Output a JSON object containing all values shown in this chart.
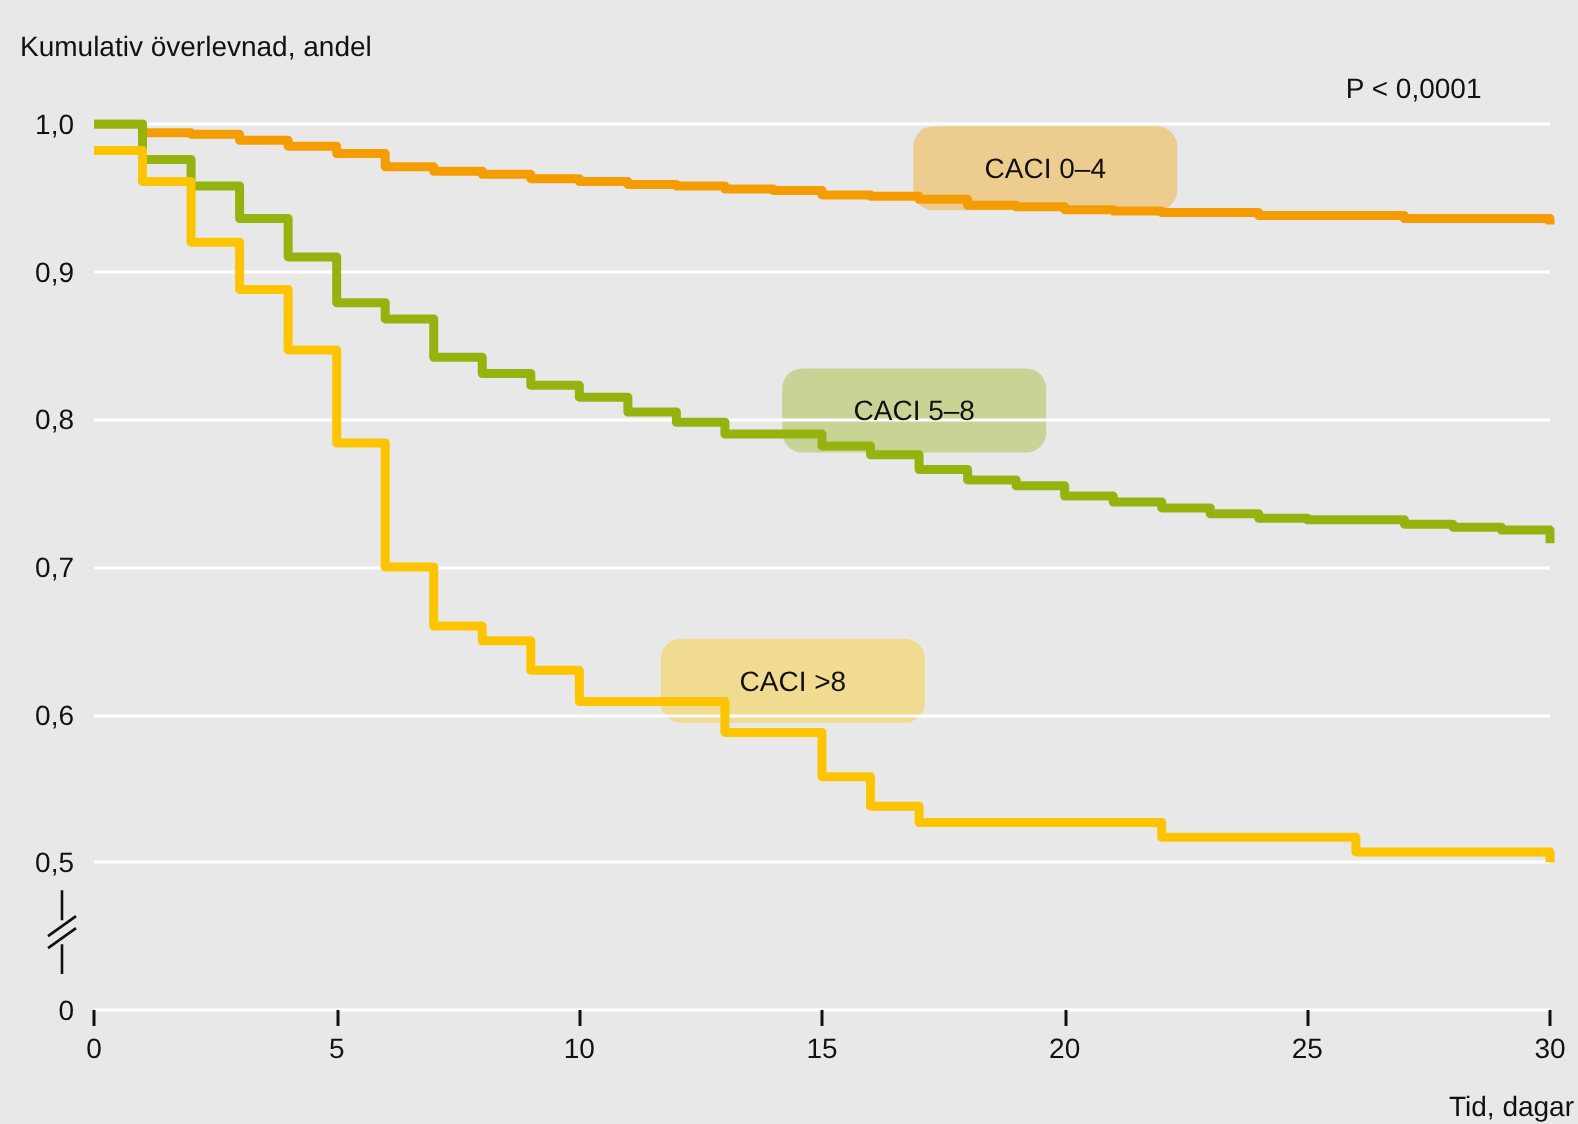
{
  "chart_data": {
    "type": "step",
    "ylabel": "Kumulativ överlevnad, andel",
    "xlabel": "Tid, dagar",
    "annotations": [
      "P < 0,0001"
    ],
    "xlim": [
      0,
      30
    ],
    "xticks": [
      0,
      5,
      10,
      15,
      20,
      25,
      30
    ],
    "ylim": [
      0.4,
      1.0
    ],
    "yticks": [
      {
        "value": 0.4,
        "label": "0"
      },
      {
        "value": 0.5,
        "label": "0,5"
      },
      {
        "value": 0.6,
        "label": "0,6"
      },
      {
        "value": 0.7,
        "label": "0,7"
      },
      {
        "value": 0.8,
        "label": "0,8"
      },
      {
        "value": 0.9,
        "label": "0,9"
      },
      {
        "value": 1.0,
        "label": "1,0"
      }
    ],
    "grid": "y",
    "line_style": "solid",
    "series": [
      {
        "name": "CACI 0–4",
        "color": "#f59d00",
        "x": [
          0,
          1,
          2,
          3,
          4,
          5,
          6,
          7,
          8,
          9,
          10,
          11,
          12,
          13,
          14,
          15,
          16,
          17,
          18,
          19,
          20,
          21,
          22,
          24,
          27,
          30
        ],
        "values": [
          1.0,
          0.994,
          0.993,
          0.989,
          0.985,
          0.98,
          0.971,
          0.968,
          0.966,
          0.963,
          0.961,
          0.959,
          0.958,
          0.956,
          0.955,
          0.952,
          0.951,
          0.949,
          0.945,
          0.944,
          0.942,
          0.941,
          0.94,
          0.938,
          0.936,
          0.932
        ]
      },
      {
        "name": "CACI 5–8",
        "color": "#94b30e",
        "x": [
          0,
          1,
          2,
          3,
          4,
          5,
          6,
          7,
          8,
          9,
          10,
          11,
          12,
          13,
          15,
          16,
          17,
          18,
          19,
          20,
          21,
          22,
          23,
          24,
          25,
          27,
          28,
          29,
          30
        ],
        "values": [
          1.0,
          0.976,
          0.958,
          0.936,
          0.91,
          0.879,
          0.868,
          0.842,
          0.831,
          0.823,
          0.815,
          0.805,
          0.798,
          0.79,
          0.782,
          0.776,
          0.766,
          0.759,
          0.755,
          0.748,
          0.744,
          0.74,
          0.736,
          0.733,
          0.732,
          0.729,
          0.727,
          0.725,
          0.716
        ]
      },
      {
        "name": "CACI >8",
        "color": "#fec400",
        "x": [
          0,
          1,
          2,
          3,
          4,
          5,
          6,
          7,
          8,
          9,
          10,
          13,
          15,
          16,
          17,
          22,
          26,
          30
        ],
        "values": [
          0.982,
          0.961,
          0.92,
          0.888,
          0.847,
          0.784,
          0.7,
          0.66,
          0.65,
          0.63,
          0.609,
          0.588,
          0.558,
          0.538,
          0.527,
          0.517,
          0.507,
          0.5
        ]
      }
    ]
  }
}
